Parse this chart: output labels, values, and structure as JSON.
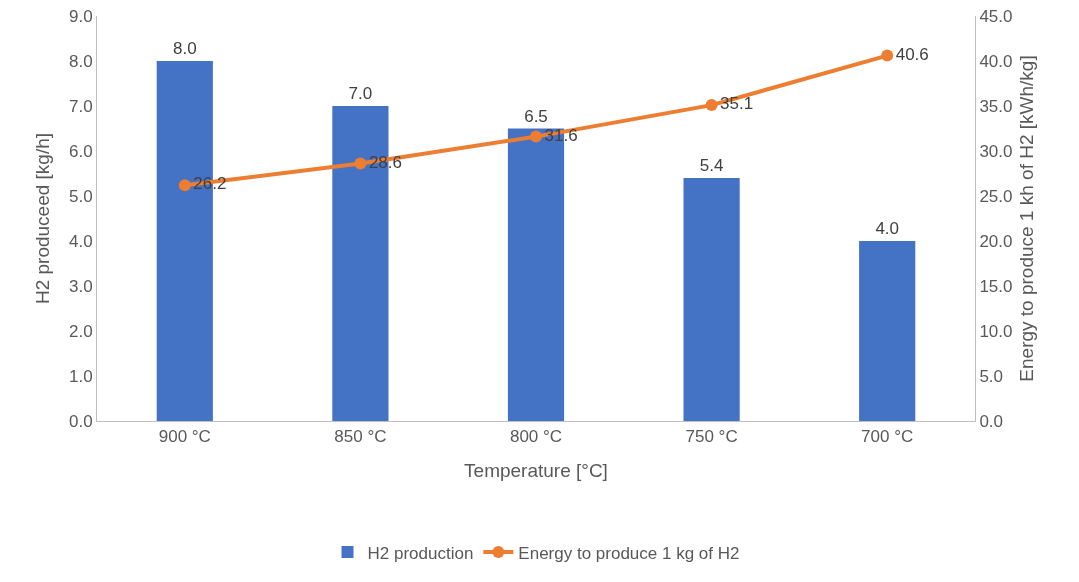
{
  "chart_data": {
    "type": "bar",
    "xlabel": "Temperature [°C]",
    "ylabel": "H2 produceed [kg/h]",
    "y2label": "Energy to produce 1 kh of H2 [kWh/kg]",
    "categories": [
      "900 °C",
      "850 °C",
      "800 °C",
      "750 °C",
      "700 °C"
    ],
    "series": [
      {
        "name": "H2 production",
        "color": "#4472c4",
        "values": [
          8.0,
          7.0,
          6.5,
          5.4,
          4.0
        ],
        "value_labels": [
          "8.0",
          "7.0",
          "6.5",
          "5.4",
          "4.0"
        ]
      },
      {
        "name": "Energy to produce 1 kg of H2",
        "type": "line",
        "axis": "y2",
        "color": "#ed7d31",
        "values": [
          26.2,
          28.6,
          31.6,
          35.1,
          40.6
        ],
        "value_labels": [
          "26.2",
          "28.6",
          "31.6",
          "35.1",
          "40.6"
        ]
      }
    ],
    "ylim": [
      0,
      9
    ],
    "yticks": [
      {
        "value": 0,
        "label": "0.0"
      },
      {
        "value": 1,
        "label": "1.0"
      },
      {
        "value": 2,
        "label": "2.0"
      },
      {
        "value": 3,
        "label": "3.0"
      },
      {
        "value": 4,
        "label": "4.0"
      },
      {
        "value": 5,
        "label": "5.0"
      },
      {
        "value": 6,
        "label": "6.0"
      },
      {
        "value": 7,
        "label": "7.0"
      },
      {
        "value": 8,
        "label": "8.0"
      },
      {
        "value": 9,
        "label": "9.0"
      }
    ],
    "y2lim": [
      0,
      45
    ],
    "y2ticks": [
      {
        "value": 0,
        "label": "0.0"
      },
      {
        "value": 5,
        "label": "5.0"
      },
      {
        "value": 10,
        "label": "10.0"
      },
      {
        "value": 15,
        "label": "15.0"
      },
      {
        "value": 20,
        "label": "20.0"
      },
      {
        "value": 25,
        "label": "25.0"
      },
      {
        "value": 30,
        "label": "30.0"
      },
      {
        "value": 35,
        "label": "35.0"
      },
      {
        "value": 40,
        "label": "40.0"
      },
      {
        "value": 45,
        "label": "45.0"
      }
    ],
    "grid": false,
    "legend": "bottom",
    "marker": "circle",
    "line_style": "solid"
  }
}
